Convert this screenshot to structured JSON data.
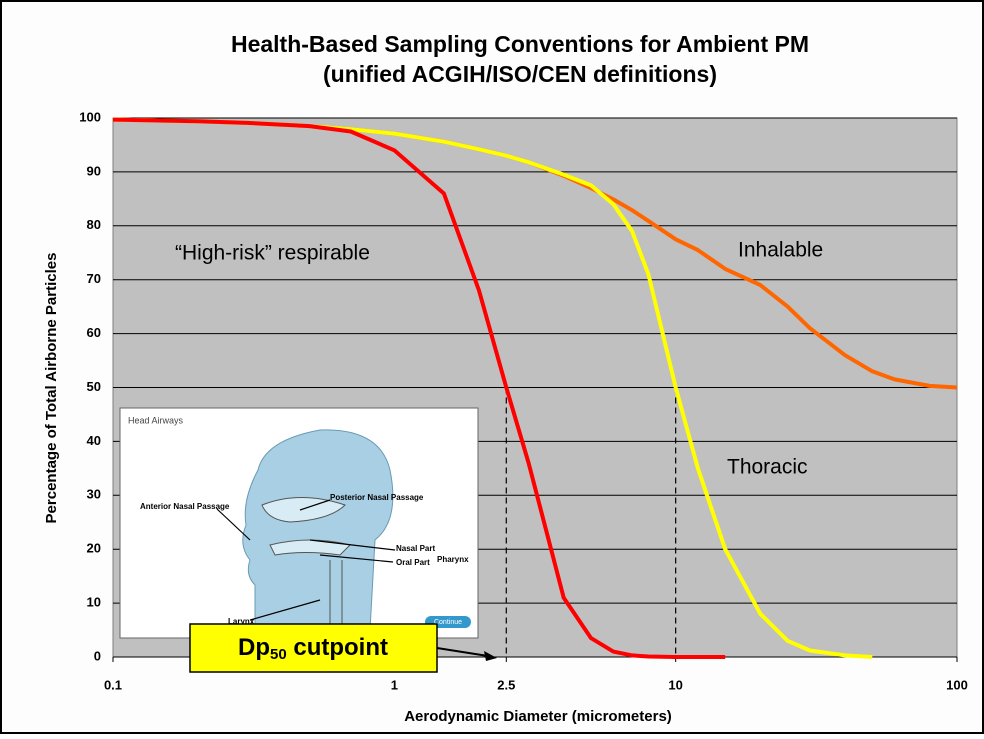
{
  "chart_data": {
    "type": "line",
    "title": "Health-Based Sampling Conventions for Ambient PM",
    "subtitle": "(unified ACGIH/ISO/CEN definitions)",
    "x_label": "Aerodynamic Diameter (micrometers)",
    "y_label": "Percentage of Total Airborne Particles",
    "log_x": true,
    "grid": true,
    "xlim": [
      0.1,
      100
    ],
    "xticks": [
      0.1,
      1,
      2.5,
      10,
      100
    ],
    "ylim": [
      0,
      100
    ],
    "yticks": [
      0,
      10,
      20,
      30,
      40,
      50,
      60,
      70,
      80,
      90,
      100
    ],
    "x": [
      0.1,
      0.2,
      0.3,
      0.5,
      0.7,
      1,
      1.5,
      2,
      2.5,
      3,
      4,
      5,
      6,
      7,
      8,
      10,
      12,
      15,
      20,
      25,
      30,
      40,
      50,
      60,
      80,
      100
    ],
    "series": [
      {
        "name": "Inhalable",
        "color": "#ff6600",
        "values": [
          99.7,
          99.4,
          99.1,
          98.5,
          97.9,
          97.1,
          95.6,
          94.2,
          93.0,
          91.8,
          89.3,
          87.0,
          84.9,
          82.9,
          80.9,
          77.5,
          75.5,
          72,
          69,
          65,
          61,
          56,
          53,
          51.5,
          50.3,
          50
        ]
      },
      {
        "name": "Thoracic",
        "color": "#ffff00",
        "values": [
          99.7,
          99.4,
          99.1,
          98.5,
          97.9,
          97.1,
          95.6,
          94.2,
          93.0,
          91.8,
          89.5,
          87.5,
          84,
          79,
          71,
          50,
          35,
          20,
          8,
          3,
          1.2,
          0.3,
          0,
          null,
          null,
          null
        ]
      },
      {
        "name": "“High-risk” respirable",
        "color": "#ff0000",
        "values": [
          99.7,
          99.4,
          99.1,
          98.5,
          97.5,
          94,
          86,
          68,
          50,
          36,
          11,
          3.5,
          1,
          0.3,
          0.1,
          0,
          0,
          0,
          null,
          null,
          null,
          null,
          null,
          null,
          null,
          null
        ]
      }
    ],
    "cutpoints": [
      {
        "x": 2.5,
        "y": 50
      },
      {
        "x": 10,
        "y": 50
      }
    ],
    "callout": {
      "main": "Dp",
      "sub": "50",
      "rest": " cutpoint"
    },
    "inset": {
      "title": "Head Airways",
      "labels": [
        "Anterior Nasal Passage",
        "Posterior Nasal Passage",
        "Nasal Part",
        "Oral Part",
        "Pharynx",
        "Larynx",
        "Continue"
      ]
    }
  }
}
